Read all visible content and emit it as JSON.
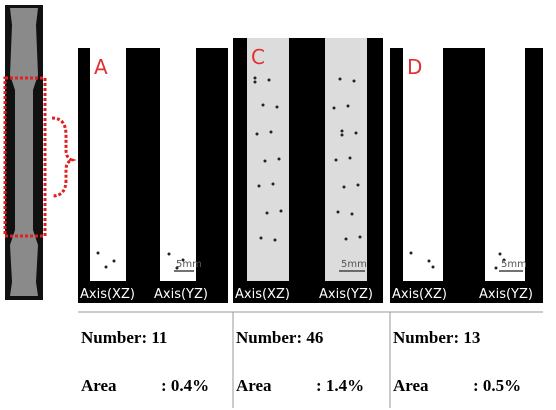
{
  "panels": [
    {
      "label": "A",
      "axis_left": "Axis(XZ)",
      "axis_right": "Axis(YZ)",
      "scale": "5mm",
      "number": "Number: 11",
      "area_label": "Area",
      "area_value": ": 0.4%"
    },
    {
      "label": "C",
      "axis_left": "Axis(XZ)",
      "axis_right": "Axis(YZ)",
      "scale": "5mm",
      "number": "Number: 46",
      "area_label": "Area",
      "area_value": ": 1.4%"
    },
    {
      "label": "D",
      "axis_left": "Axis(XZ)",
      "axis_right": "Axis(YZ)",
      "scale": "5mm",
      "number": "Number: 13",
      "area_label": "Area",
      "area_value": ": 0.5%"
    }
  ]
}
